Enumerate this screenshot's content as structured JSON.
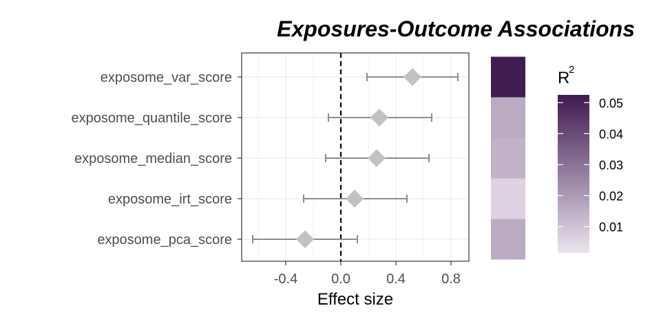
{
  "chart_data": {
    "type": "forest",
    "title": "Exposures-Outcome Associations",
    "xlabel": "Effect size",
    "ylabel": "",
    "xlim": [
      -0.72,
      0.93
    ],
    "x_ticks": [
      -0.4,
      0.0,
      0.4,
      0.8
    ],
    "x_tick_labels": [
      "-0.4",
      "0.0",
      "0.4",
      "0.8"
    ],
    "reference_line_x": 0,
    "grid": true,
    "categories": [
      "exposome_var_score",
      "exposome_quantile_score",
      "exposome_median_score",
      "exposome_irt_score",
      "exposome_pca_score"
    ],
    "estimates": [
      0.52,
      0.28,
      0.26,
      0.1,
      -0.26
    ],
    "ci_low": [
      0.19,
      -0.09,
      -0.11,
      -0.27,
      -0.64
    ],
    "ci_high": [
      0.85,
      0.66,
      0.64,
      0.48,
      0.12
    ],
    "r2_values": [
      0.052,
      0.016,
      0.014,
      0.006,
      0.016
    ],
    "legend": {
      "title_base": "R",
      "title_sup": "2",
      "position": "right",
      "ticks": [
        0.05,
        0.04,
        0.03,
        0.02,
        0.01
      ],
      "tick_labels": [
        "0.05",
        "0.04",
        "0.03",
        "0.02",
        "0.01"
      ],
      "range": [
        0.0015,
        0.0525
      ],
      "color_low": "#ebe4ef",
      "color_high": "#3f1a50"
    },
    "colors": {
      "point": "#c2c2c2",
      "errorbar": "#8c8c8c",
      "reference_line": "#000000",
      "grid": "#ebebeb",
      "panel_border": "#333333"
    }
  }
}
